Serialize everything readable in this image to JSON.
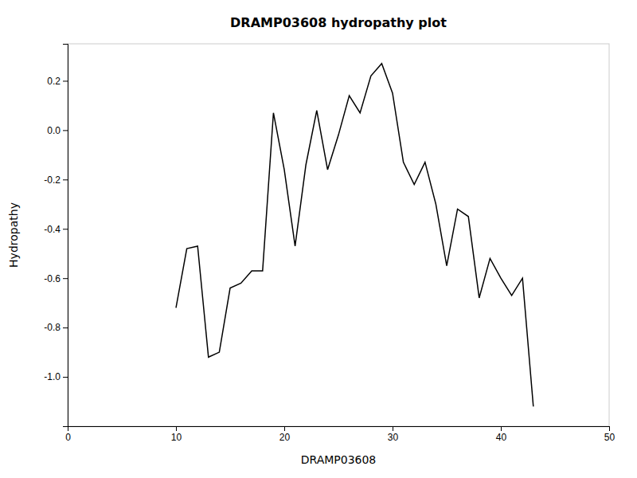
{
  "chart_data": {
    "type": "line",
    "title": "DRAMP03608 hydropathy plot",
    "xlabel": "DRAMP03608",
    "ylabel": "Hydropathy",
    "color": "#000000",
    "xlim": [
      0,
      50
    ],
    "ylim": [
      -1.2,
      0.35
    ],
    "xticks": [
      0,
      10,
      20,
      30,
      40,
      50
    ],
    "yticks": [
      0.2,
      {
        "value": 0.0,
        "label": "0.0"
      },
      -0.2,
      -0.4,
      -0.6,
      -0.8,
      {
        "value": -1.0,
        "label": "-1.0"
      }
    ],
    "x": [
      10,
      11,
      12,
      13,
      14,
      15,
      16,
      17,
      18,
      19,
      20,
      21,
      22,
      23,
      24,
      25,
      26,
      27,
      28,
      29,
      30,
      31,
      32,
      33,
      34,
      35,
      36,
      37,
      38,
      39,
      40,
      41,
      42,
      43
    ],
    "values": [
      -0.72,
      -0.48,
      -0.47,
      -0.92,
      -0.9,
      -0.64,
      -0.62,
      -0.57,
      -0.57,
      0.07,
      -0.16,
      -0.47,
      -0.14,
      0.08,
      -0.16,
      -0.02,
      0.14,
      0.07,
      0.22,
      0.27,
      0.15,
      -0.13,
      -0.22,
      -0.13,
      -0.3,
      -0.55,
      -0.32,
      -0.35,
      -0.68,
      -0.52,
      -0.6,
      -0.67,
      -0.6,
      -1.12
    ]
  }
}
